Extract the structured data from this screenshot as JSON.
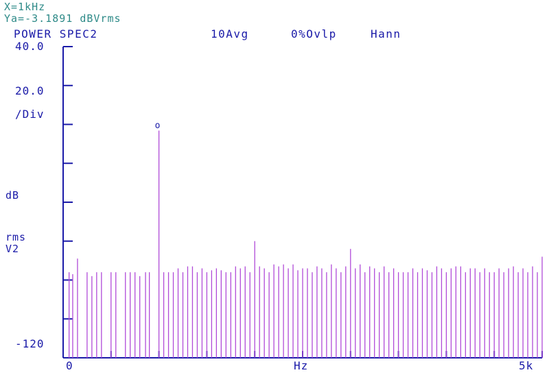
{
  "header": {
    "cursor_x": "X=1kHz",
    "cursor_y": "Ya=-3.1891 dBVrms",
    "title": "POWER SPEC2",
    "averages": "10Avg",
    "overlap": "0%Ovlp",
    "window": "Hann"
  },
  "axes": {
    "y_top_label": "40.0",
    "y_scale_label": "20.0",
    "y_div_label": "/Div",
    "y_unit_db": "dB",
    "y_unit_rms": "rms",
    "y_unit_v2": "V2",
    "y_bottom_label": "-120",
    "x_start_label": "0",
    "x_unit_label": "Hz",
    "x_end_label": "5k"
  },
  "marker_label": "o",
  "colors": {
    "trace": "#b04ad8",
    "axis": "#1a1aa8",
    "cursor_text": "#2e8a88"
  },
  "chart_data": {
    "type": "line",
    "title": "POWER SPEC2",
    "xlabel": "Hz",
    "ylabel": "dB rms V2",
    "xlim": [
      0,
      5000
    ],
    "ylim": [
      -120,
      40
    ],
    "y_per_div": 20,
    "marker": {
      "x": 1000,
      "y": -3.1891
    },
    "series": [
      {
        "x": [
          0,
          62,
          100,
          150,
          250,
          300,
          350,
          400,
          500,
          550,
          650,
          700,
          750,
          800,
          860,
          900,
          1000,
          1050,
          1100,
          1150,
          1200,
          1250,
          1300,
          1350,
          1400,
          1450,
          1500,
          1550,
          1600,
          1650,
          1700,
          1750,
          1800,
          1850,
          1900,
          1950,
          2000,
          2050,
          2100,
          2150,
          2200,
          2250,
          2300,
          2350,
          2400,
          2450,
          2500,
          2550,
          2600,
          2650,
          2700,
          2750,
          2800,
          2850,
          2900,
          2950,
          3000,
          3050,
          3100,
          3150,
          3200,
          3250,
          3300,
          3350,
          3400,
          3450,
          3500,
          3550,
          3600,
          3650,
          3700,
          3750,
          3800,
          3850,
          3900,
          3950,
          4000,
          4050,
          4100,
          4150,
          4200,
          4250,
          4300,
          4350,
          4400,
          4450,
          4500,
          4550,
          4600,
          4650,
          4700,
          4750,
          4800,
          4850,
          4900,
          4950,
          5000
        ],
        "y": [
          -120,
          -76,
          -77,
          -69,
          -76,
          -78,
          -76,
          -76,
          -76,
          -76,
          -76,
          -76,
          -76,
          -78,
          -76,
          -76,
          -3.19,
          -76,
          -76,
          -76,
          -74,
          -76,
          -73,
          -73,
          -76,
          -74,
          -76,
          -75,
          -74,
          -75,
          -76,
          -76,
          -73,
          -74,
          -73,
          -76,
          -60,
          -73,
          -74,
          -76,
          -72,
          -73,
          -72,
          -74,
          -72,
          -75,
          -74,
          -74,
          -76,
          -73,
          -74,
          -76,
          -72,
          -74,
          -76,
          -73,
          -64,
          -74,
          -72,
          -76,
          -73,
          -74,
          -76,
          -73,
          -76,
          -74,
          -76,
          -76,
          -76,
          -74,
          -76,
          -74,
          -75,
          -76,
          -73,
          -74,
          -76,
          -74,
          -73,
          -73,
          -76,
          -74,
          -74,
          -76,
          -74,
          -76,
          -76,
          -74,
          -76,
          -74,
          -73,
          -76,
          -74,
          -76,
          -73,
          -76,
          -68
        ]
      }
    ],
    "grid": false
  }
}
